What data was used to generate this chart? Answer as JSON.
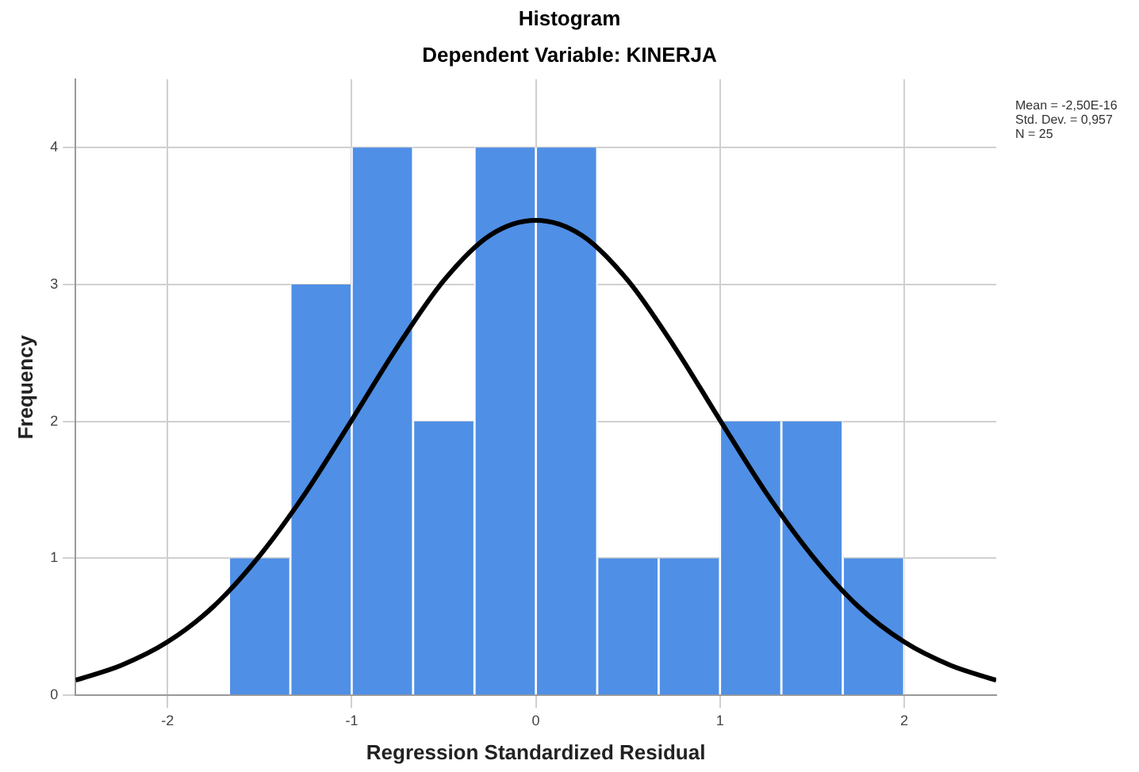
{
  "chart_data": {
    "type": "histogram",
    "title": "Histogram",
    "subtitle": "Dependent Variable: KINERJA",
    "xlabel": "Regression Standardized Residual",
    "ylabel": "Frequency",
    "bins": [
      -1.667,
      -1.333,
      -1,
      -0.667,
      -0.333,
      0,
      0.333,
      0.667,
      1,
      1.333,
      1.667,
      2
    ],
    "values": [
      1,
      3,
      4,
      2,
      4,
      4,
      1,
      1,
      2,
      2,
      1
    ],
    "color": "#4f8fe6",
    "series": [
      {
        "type": "line",
        "color": "#000000",
        "marker": "none",
        "line_style": "solid",
        "x": [
          -2.5,
          -2.25,
          -2,
          -1.75,
          -1.5,
          -1.25,
          -1,
          -0.75,
          -0.5,
          -0.25,
          0,
          0.25,
          0.5,
          0.75,
          1,
          1.25,
          1.5,
          1.75,
          2,
          2.25,
          2.5
        ],
        "values": [
          0.11,
          0.22,
          0.39,
          0.65,
          1.02,
          1.48,
          2.01,
          2.55,
          3.03,
          3.36,
          3.47,
          3.36,
          3.03,
          2.55,
          2.01,
          1.48,
          1.02,
          0.65,
          0.39,
          0.22,
          0.11
        ]
      }
    ],
    "xlim": [
      -2.5,
      2.5
    ],
    "xticks": [
      -2,
      -1,
      0,
      1,
      2
    ],
    "ylim": [
      0,
      4.5
    ],
    "yticks": [
      0,
      1,
      2,
      3,
      4
    ],
    "grid": true,
    "legend": false,
    "annotations": [
      "Mean = -2,50E-16",
      "Std. Dev. = 0,957",
      "N = 25"
    ]
  }
}
